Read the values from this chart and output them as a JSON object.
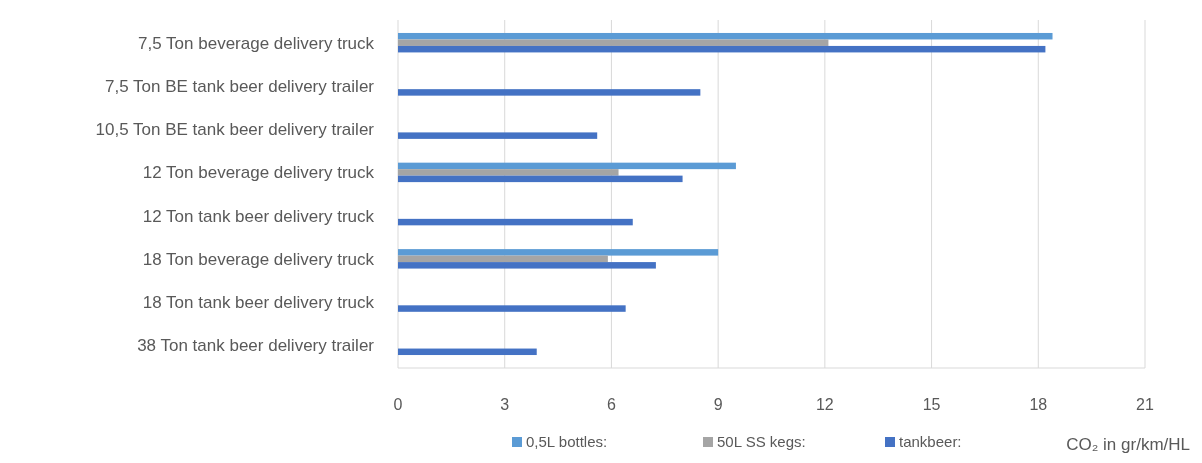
{
  "chart_data": {
    "type": "bar",
    "orientation": "horizontal",
    "xlabel": "CO₂ in gr/km/HL",
    "categories": [
      "7,5 Ton beverage delivery truck",
      "7,5 Ton BE tank beer delivery trailer",
      "10,5 Ton BE tank beer delivery trailer",
      "12 Ton beverage delivery truck",
      "12 Ton tank beer delivery truck",
      "18 Ton beverage delivery truck",
      "18 Ton tank beer delivery truck",
      "38 Ton tank beer delivery trailer"
    ],
    "series": [
      {
        "name": "0,5L bottles:",
        "color": "#5b9bd5",
        "values": [
          18.4,
          null,
          null,
          9.5,
          null,
          9.0,
          null,
          null
        ]
      },
      {
        "name": "50L SS kegs:",
        "color": "#a5a5a5",
        "values": [
          12.1,
          null,
          null,
          6.2,
          null,
          5.9,
          null,
          null
        ]
      },
      {
        "name": "tankbeer:",
        "color": "#4472c4",
        "values": [
          18.2,
          8.5,
          5.6,
          8.0,
          6.6,
          7.25,
          6.4,
          3.9
        ]
      }
    ],
    "xlim": [
      0,
      21
    ],
    "xticks": [
      0,
      3,
      6,
      9,
      12,
      15,
      18,
      21
    ],
    "grid": "x",
    "legend": "bottom"
  }
}
